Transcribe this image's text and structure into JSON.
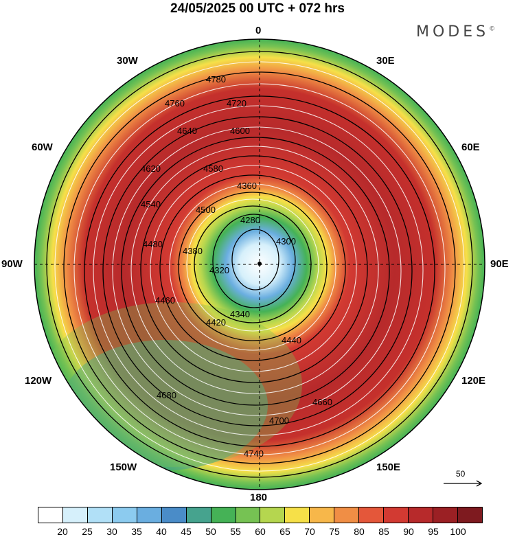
{
  "header": {
    "title": "24/05/2025  00 UTC  + 072 hrs",
    "logo": "MODES",
    "logo_mark": "©"
  },
  "map": {
    "projection": "north polar stereographic",
    "longitude_labels": {
      "top": "0",
      "bottom": "180",
      "left": "90W",
      "right": "90E",
      "upper_left": "30W",
      "upper_right": "30E",
      "mid_upper_left": "60W",
      "mid_upper_right": "60E",
      "mid_lower_left": "120W",
      "mid_lower_right": "120E",
      "lower_left": "150W",
      "lower_right": "150E"
    },
    "contour_labels": [
      "4780",
      "4760",
      "4720",
      "4640",
      "4600",
      "4620",
      "4580",
      "4540",
      "4500",
      "4480",
      "4460",
      "4420",
      "4380",
      "4360",
      "4320",
      "4280",
      "4300",
      "4340",
      "4440",
      "4660",
      "4680",
      "4700",
      "4740"
    ],
    "vector_scale_label": "50"
  },
  "colorbar": {
    "tick_labels": [
      "20",
      "25",
      "30",
      "35",
      "40",
      "45",
      "50",
      "55",
      "60",
      "65",
      "70",
      "75",
      "80",
      "85",
      "90",
      "95",
      "100"
    ],
    "colors": [
      "#ffffff",
      "#d6f0fb",
      "#b1e0f7",
      "#8ccbef",
      "#6aaee0",
      "#4a8cc8",
      "#46a38e",
      "#45b256",
      "#76c253",
      "#b5d64f",
      "#f6e048",
      "#f7b74a",
      "#f08e45",
      "#e4573a",
      "#d23a32",
      "#b72a2b",
      "#9b2024",
      "#7e1a1f"
    ]
  }
}
